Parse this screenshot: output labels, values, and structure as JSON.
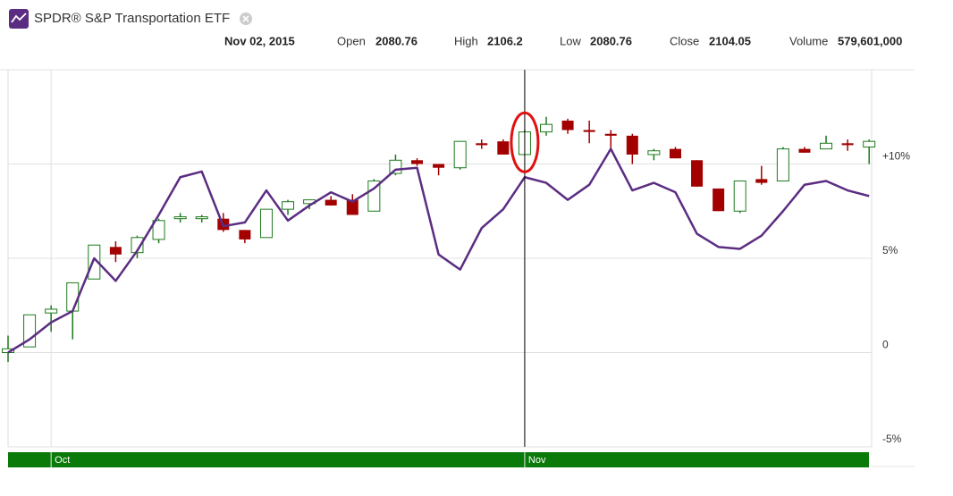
{
  "header": {
    "title": "SPDR® S&P Transportation ETF",
    "date": "Nov 02, 2015",
    "info": [
      {
        "label": "Open",
        "value": "2080.76"
      },
      {
        "label": "High",
        "value": "2106.2"
      },
      {
        "label": "Low",
        "value": "2080.76"
      },
      {
        "label": "Close",
        "value": "2104.05"
      },
      {
        "label": "Volume",
        "value": "579,601,000"
      }
    ]
  },
  "chart_data": {
    "type": "candlestick",
    "categories": [
      null,
      null,
      "Oct",
      null,
      null,
      null,
      null,
      null,
      null,
      null,
      null,
      null,
      null,
      null,
      null,
      null,
      null,
      null,
      null,
      null,
      null,
      null,
      null,
      null,
      "Nov",
      null,
      null,
      null,
      null,
      null,
      null,
      null,
      null,
      null,
      null,
      null,
      null,
      null,
      null,
      null,
      null
    ],
    "open": [
      0,
      0.3,
      2.1,
      2.2,
      3.9,
      5.6,
      5.3,
      6.0,
      7.1,
      7.1,
      7.1,
      6.5,
      6.1,
      7.6,
      7.9,
      8.1,
      8.1,
      7.5,
      9.5,
      10.2,
      10.0,
      9.8,
      11.1,
      11.2,
      10.5,
      11.7,
      12.3,
      11.8,
      11.6,
      11.5,
      10.5,
      10.8,
      10.2,
      8.7,
      7.5,
      9.2,
      9.1,
      10.8,
      10.8,
      11.1,
      10.9
    ],
    "high": [
      0.9,
      2.0,
      2.5,
      3.7,
      5.7,
      5.9,
      6.2,
      7.1,
      7.4,
      7.3,
      7.4,
      6.5,
      7.6,
      8.1,
      8.1,
      8.3,
      8.4,
      9.2,
      10.5,
      10.3,
      10.0,
      11.2,
      11.3,
      11.3,
      11.8,
      12.5,
      12.4,
      12.3,
      11.8,
      11.6,
      10.8,
      10.9,
      10.2,
      8.7,
      9.1,
      9.9,
      10.9,
      10.9,
      11.5,
      11.3,
      11.3
    ],
    "low": [
      -0.5,
      0.3,
      1.1,
      0.7,
      3.9,
      4.8,
      5.0,
      5.8,
      6.9,
      6.9,
      6.4,
      5.8,
      6.1,
      7.3,
      7.6,
      7.8,
      7.3,
      7.5,
      9.4,
      9.9,
      9.4,
      9.7,
      10.8,
      10.5,
      10.5,
      11.5,
      11.6,
      11.1,
      10.8,
      10.0,
      10.2,
      10.3,
      8.8,
      7.5,
      7.4,
      8.9,
      9.1,
      10.6,
      10.8,
      10.7,
      10.0
    ],
    "close": [
      0.2,
      2.0,
      2.3,
      3.7,
      5.7,
      5.2,
      6.1,
      7.0,
      7.2,
      7.2,
      6.5,
      6.0,
      7.6,
      8.0,
      8.1,
      7.8,
      7.3,
      9.1,
      10.2,
      10.0,
      9.8,
      11.2,
      11.0,
      10.5,
      11.7,
      12.1,
      11.8,
      11.7,
      11.5,
      10.5,
      10.7,
      10.3,
      8.8,
      7.5,
      9.1,
      9.0,
      10.8,
      10.6,
      11.1,
      11.0,
      11.2
    ],
    "up_color": "#1d7a1d",
    "down_color": "#a30000",
    "line": {
      "color": "#5b2d82",
      "values": [
        0,
        0.7,
        1.6,
        2.2,
        5.0,
        3.8,
        5.4,
        7.3,
        9.3,
        9.6,
        6.7,
        6.9,
        8.6,
        7.0,
        7.8,
        8.5,
        8.0,
        8.7,
        9.7,
        9.8,
        5.2,
        4.4,
        6.6,
        7.6,
        9.3,
        9.0,
        8.1,
        8.9,
        10.8,
        8.6,
        9.0,
        8.5,
        6.3,
        5.6,
        5.5,
        6.2,
        7.5,
        8.9,
        9.1,
        8.6,
        8.3
      ]
    },
    "ylim": [
      -5,
      15
    ],
    "yticks": [
      {
        "value": 10,
        "label": "+10%"
      },
      {
        "value": 5,
        "label": "5%"
      },
      0,
      {
        "value": -5,
        "label": "-5%"
      }
    ],
    "grid": true,
    "crosshair": 24
  }
}
